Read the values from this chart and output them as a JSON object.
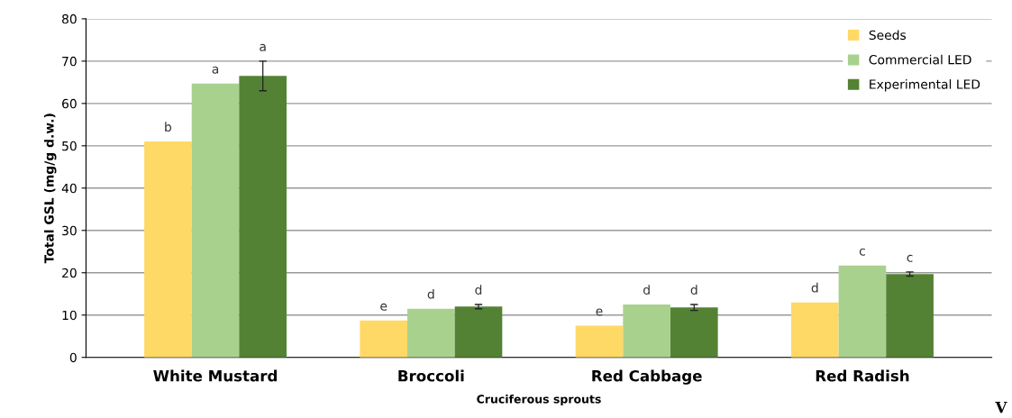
{
  "chart_data": {
    "type": "bar",
    "xlabel": "Cruciferous sprouts",
    "ylabel": "Total GSL (mg/g d.w.)",
    "categories": [
      "White Mustard",
      "Broccoli",
      "Red Cabbage",
      "Red Radish"
    ],
    "series": [
      {
        "name": "Seeds",
        "color": "#ffd966",
        "values": [
          51,
          8.7,
          7.5,
          13
        ],
        "value_labels": [
          "b",
          "e",
          "e",
          "d"
        ]
      },
      {
        "name": "Commercial LED",
        "color": "#a9d18e",
        "values": [
          64.7,
          11.5,
          12.5,
          21.7
        ],
        "value_labels": [
          "a",
          "d",
          "d",
          "c"
        ]
      },
      {
        "name": "Experimental LED",
        "color": "#548235",
        "values": [
          66.5,
          12,
          11.8,
          19.7
        ],
        "errors": [
          3.5,
          0.5,
          0.7,
          0.5
        ],
        "value_labels": [
          "a",
          "d",
          "d",
          "c"
        ]
      }
    ],
    "ylim": [
      0,
      80
    ],
    "yticks": [
      0,
      10,
      20,
      30,
      40,
      50,
      60,
      70,
      80
    ],
    "grid": "y",
    "legend": "top right",
    "annotations": [
      "V"
    ]
  }
}
